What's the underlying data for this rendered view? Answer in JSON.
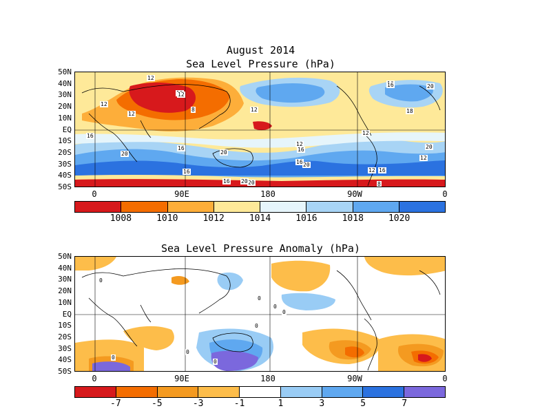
{
  "panel1": {
    "title1": "August 2014",
    "title2": "Sea Level Pressure (hPa)",
    "lat_labels": [
      "50N",
      "40N",
      "30N",
      "20N",
      "10N",
      "EQ",
      "10S",
      "20S",
      "30S",
      "40S",
      "50S"
    ],
    "lon_labels": [
      "0",
      "90E",
      "180",
      "90W",
      "0"
    ],
    "colorbar_colors": [
      "#d7191c",
      "#f46d00",
      "#fdae3a",
      "#fee999",
      "#e6f5fb",
      "#a8d4f5",
      "#5fa8f0",
      "#2b72e0"
    ],
    "colorbar_labels": [
      "1008",
      "1010",
      "1012",
      "1014",
      "1016",
      "1018",
      "1020"
    ],
    "contour_labels": [
      "12",
      "12",
      "12",
      "12",
      "12",
      "12",
      "8",
      "16",
      "20",
      "16",
      "16",
      "12",
      "16",
      "20",
      "16",
      "20",
      "20",
      "16",
      "20",
      "16",
      "12",
      "18",
      "16",
      "12",
      "12",
      "16",
      "8",
      "20",
      "20"
    ]
  },
  "panel2": {
    "title": "Sea Level Pressure Anomaly (hPa)",
    "lat_labels": [
      "50N",
      "40N",
      "30N",
      "20N",
      "10N",
      "EQ",
      "10S",
      "20S",
      "30S",
      "40S",
      "50S"
    ],
    "lon_labels": [
      "0",
      "90E",
      "180",
      "90W",
      "0"
    ],
    "colorbar_colors": [
      "#d7191c",
      "#f46d00",
      "#f49a20",
      "#fdbd4a",
      "#ffffff",
      "#99ccf5",
      "#5fa8f0",
      "#2b72e0",
      "#7b68dd"
    ],
    "colorbar_labels": [
      "-7",
      "-5",
      "-3",
      "-1",
      "1",
      "3",
      "5",
      "7"
    ],
    "contour_labels": [
      "0",
      "0",
      "0",
      "0",
      "0",
      "0",
      "0",
      "0"
    ]
  }
}
